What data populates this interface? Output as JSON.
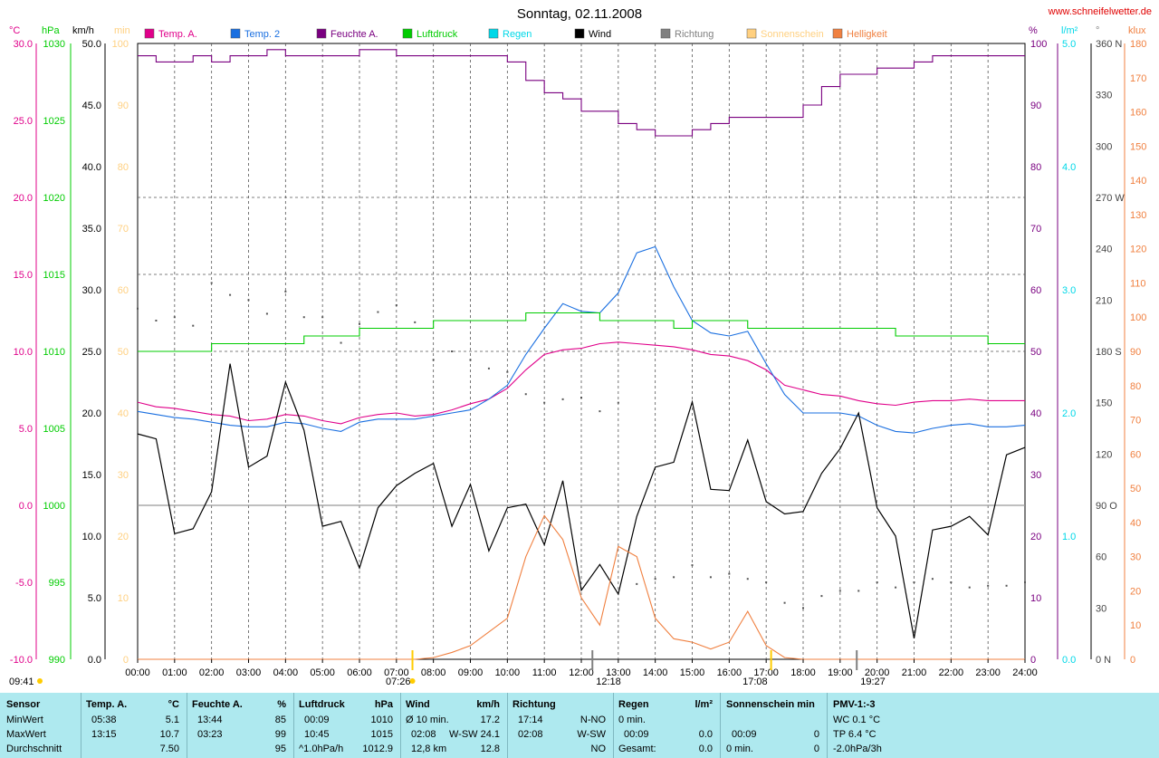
{
  "title": "Sonntag, 02.11.2008",
  "site": "www.schneifelwetter.de",
  "legend": [
    {
      "label": "Temp. A.",
      "color": "#e0008a"
    },
    {
      "label": "Temp. 2",
      "color": "#1a6fe0"
    },
    {
      "label": "Feuchte A.",
      "color": "#7a0080"
    },
    {
      "label": "Luftdruck",
      "color": "#00cc00"
    },
    {
      "label": "Regen",
      "color": "#00d8e8"
    },
    {
      "label": "Wind",
      "color": "#000000"
    },
    {
      "label": "Richtung",
      "color": "#808080"
    },
    {
      "label": "Sonnenschein",
      "color": "#ffd080"
    },
    {
      "label": "Helligkeit",
      "color": "#f08040"
    }
  ],
  "axes": {
    "temp": {
      "unit": "°C",
      "ticks": [
        "30.0",
        "25.0",
        "20.0",
        "15.0",
        "10.0",
        "5.0",
        "0.0",
        "-5.0",
        "-10.0"
      ],
      "color": "#e0008a"
    },
    "press": {
      "unit": "hPa",
      "ticks": [
        "1030",
        "1025",
        "1020",
        "1015",
        "1010",
        "1005",
        "1000",
        "995",
        "990"
      ],
      "color": "#00cc00"
    },
    "wind": {
      "unit": "km/h",
      "ticks": [
        "50.0",
        "45.0",
        "40.0",
        "35.0",
        "30.0",
        "25.0",
        "20.0",
        "15.0",
        "10.0",
        "5.0",
        "0.0"
      ],
      "color": "#000000"
    },
    "sun": {
      "unit": "min",
      "ticks": [
        "100",
        "90",
        "80",
        "70",
        "60",
        "50",
        "40",
        "30",
        "20",
        "10",
        "0"
      ],
      "color": "#ffd080"
    },
    "hum": {
      "unit": "%",
      "ticks": [
        "100",
        "90",
        "80",
        "70",
        "60",
        "50",
        "40",
        "30",
        "20",
        "10",
        "0"
      ],
      "color": "#7a0080"
    },
    "rain": {
      "unit": "l/m²",
      "ticks": [
        "5.0",
        "4.0",
        "3.0",
        "2.0",
        "1.0",
        "0.0"
      ],
      "color": "#00d8e8"
    },
    "dir": {
      "unit": "°",
      "ticks": [
        "360 N",
        "330",
        "300",
        "270 W",
        "240",
        "210",
        "180 S",
        "150",
        "120",
        "90 O",
        "60",
        "30",
        "0 N"
      ],
      "color": "#808080"
    },
    "lux": {
      "unit": "klux",
      "ticks": [
        "180",
        "170",
        "160",
        "150",
        "140",
        "130",
        "120",
        "110",
        "100",
        "90",
        "80",
        "70",
        "60",
        "50",
        "40",
        "30",
        "20",
        "10",
        "0"
      ],
      "color": "#f08040"
    }
  },
  "time_labels": [
    "00:00",
    "01:00",
    "02:00",
    "03:00",
    "04:00",
    "05:00",
    "06:00",
    "07:00",
    "08:00",
    "09:00",
    "10:00",
    "11:00",
    "12:00",
    "13:00",
    "14:00",
    "15:00",
    "16:00",
    "17:00",
    "18:00",
    "19:00",
    "20:00",
    "21:00",
    "22:00",
    "23:00",
    "24:00"
  ],
  "markers": {
    "moon_rise": "09:41",
    "sunrise": "07:26",
    "noon": "12:18",
    "sunset": "17:08",
    "moon_set": "19:27"
  },
  "chart_data": {
    "type": "line",
    "x_hours": [
      0,
      0.5,
      1,
      1.5,
      2,
      2.5,
      3,
      3.5,
      4,
      4.5,
      5,
      5.5,
      6,
      6.5,
      7,
      7.5,
      8,
      8.5,
      9,
      9.5,
      10,
      10.5,
      11,
      11.5,
      12,
      12.5,
      13,
      13.5,
      14,
      14.5,
      15,
      15.5,
      16,
      16.5,
      17,
      17.5,
      18,
      18.5,
      19,
      19.5,
      20,
      20.5,
      21,
      21.5,
      22,
      22.5,
      23,
      23.5,
      24
    ],
    "series": [
      {
        "name": "Temp. A.",
        "axis": "temp",
        "values": [
          6.7,
          6.4,
          6.3,
          6.1,
          5.9,
          5.8,
          5.5,
          5.6,
          5.9,
          5.8,
          5.5,
          5.3,
          5.7,
          5.9,
          6.0,
          5.8,
          5.9,
          6.2,
          6.6,
          6.9,
          7.6,
          8.8,
          9.8,
          10.1,
          10.2,
          10.5,
          10.6,
          10.5,
          10.4,
          10.3,
          10.1,
          9.8,
          9.7,
          9.4,
          8.8,
          7.8,
          7.5,
          7.2,
          7.1,
          6.8,
          6.6,
          6.5,
          6.7,
          6.8,
          6.8,
          6.9,
          6.8,
          6.8,
          6.8
        ]
      },
      {
        "name": "Temp. 2",
        "axis": "temp",
        "values": [
          6.1,
          5.9,
          5.7,
          5.6,
          5.4,
          5.2,
          5.1,
          5.1,
          5.4,
          5.3,
          5.0,
          4.8,
          5.4,
          5.6,
          5.6,
          5.6,
          5.8,
          6.0,
          6.2,
          6.9,
          7.8,
          9.8,
          11.5,
          13.1,
          12.6,
          12.5,
          13.8,
          16.4,
          16.8,
          14.2,
          12.0,
          11.2,
          11.0,
          11.3,
          9.2,
          7.2,
          6.0,
          6.0,
          6.0,
          5.8,
          5.2,
          4.8,
          4.7,
          5.0,
          5.2,
          5.3,
          5.1,
          5.1,
          5.2
        ]
      },
      {
        "name": "Feuchte A.",
        "axis": "hum",
        "values": [
          98,
          97,
          97,
          98,
          97,
          98,
          98,
          99,
          98,
          98,
          98,
          98,
          99,
          99,
          98,
          98,
          98,
          98,
          98,
          98,
          97,
          94,
          92,
          91,
          89,
          89,
          87,
          86,
          85,
          85,
          86,
          87,
          88,
          88,
          88,
          88,
          90,
          93,
          95,
          95,
          96,
          96,
          97,
          98,
          98,
          98,
          98,
          98,
          98
        ]
      },
      {
        "name": "Luftdruck",
        "axis": "press",
        "values": [
          1010,
          1010,
          1010,
          1010,
          1010.5,
          1010.5,
          1010.5,
          1010.5,
          1010.5,
          1011,
          1011,
          1011,
          1011.5,
          1011.5,
          1011.5,
          1011.5,
          1012,
          1012,
          1012,
          1012,
          1012,
          1012.5,
          1012.5,
          1012.5,
          1012.5,
          1012,
          1012,
          1012,
          1012,
          1011.5,
          1012,
          1012,
          1012,
          1011.5,
          1011.5,
          1011.5,
          1011.5,
          1011.5,
          1011.5,
          1011.5,
          1011.5,
          1011,
          1011,
          1011,
          1011,
          1011,
          1010.5,
          1010.5,
          1010.5
        ]
      },
      {
        "name": "Wind",
        "axis": "wind",
        "values": [
          18.3,
          17.9,
          10.2,
          10.6,
          13.6,
          24.0,
          15.6,
          16.5,
          22.5,
          18.6,
          10.8,
          11.2,
          7.4,
          12.3,
          14.1,
          15.1,
          15.9,
          10.8,
          14.2,
          8.8,
          12.3,
          12.6,
          9.3,
          14.5,
          5.6,
          7.7,
          5.3,
          11.6,
          15.6,
          16.0,
          20.9,
          13.8,
          13.7,
          17.8,
          12.8,
          11.8,
          12.0,
          15.1,
          17.1,
          20.0,
          12.3,
          10.0,
          1.7,
          10.5,
          10.8,
          11.6,
          10.1,
          16.6,
          17.2
        ]
      },
      {
        "name": "Helligkeit",
        "axis": "lux",
        "values": [
          0,
          0,
          0,
          0,
          0,
          0,
          0,
          0,
          0,
          0,
          0,
          0,
          0,
          0,
          0,
          0,
          0.5,
          2,
          4,
          8,
          12,
          30,
          42,
          35,
          18,
          10,
          33,
          30,
          12,
          6,
          5,
          3,
          5,
          14,
          4,
          0.5,
          0,
          0,
          0,
          0,
          0,
          0,
          0,
          0,
          0,
          0,
          0,
          0,
          0
        ]
      },
      {
        "name": "Richtung",
        "axis": "dir",
        "values": [
          205,
          198,
          200,
          195,
          220,
          213,
          210,
          202,
          215,
          200,
          200,
          185,
          196,
          203,
          207,
          197,
          175,
          180,
          175,
          170,
          168,
          155,
          150,
          152,
          153,
          145,
          150,
          44,
          47,
          48,
          55,
          48,
          50,
          47,
          45,
          33,
          30,
          37,
          40,
          40,
          45,
          42,
          45,
          47,
          45,
          42,
          43,
          43,
          45
        ]
      }
    ],
    "ylim_temp": [
      -10,
      30
    ],
    "ylim_press": [
      990,
      1030
    ],
    "ylim_wind": [
      0,
      50
    ],
    "ylim_hum": [
      0,
      100
    ],
    "ylim_lux": [
      0,
      180
    ],
    "ylim_dir": [
      0,
      360
    ]
  },
  "stats": {
    "sensor": {
      "header": "Sensor",
      "rows": [
        "MinWert",
        "MaxWert",
        "Durchschnitt"
      ]
    },
    "tempa": {
      "header": "Temp. A.",
      "unit": "°C",
      "times": [
        "05:38",
        "13:15",
        ""
      ],
      "values": [
        "5.1",
        "10.7",
        "7.50"
      ]
    },
    "hum": {
      "header": "Feuchte A.",
      "unit": "%",
      "times": [
        "13:44",
        "03:23",
        ""
      ],
      "values": [
        "85",
        "99",
        "95"
      ]
    },
    "press": {
      "header": "Luftdruck",
      "unit": "hPa",
      "times": [
        "00:09",
        "10:45",
        "^1.0hPa/h"
      ],
      "values": [
        "1010",
        "1015",
        "1012.9"
      ]
    },
    "wind": {
      "header": "Wind",
      "unit": "km/h",
      "times": [
        "Ø 10 min.",
        "02:08",
        "12,8 km"
      ],
      "extra": [
        "",
        "W-SW",
        ""
      ],
      "values": [
        "17.2",
        "24.1",
        "12.8"
      ]
    },
    "dir": {
      "header": "Richtung",
      "times": [
        "17:14",
        "02:08",
        ""
      ],
      "values": [
        "N-NO",
        "W-SW",
        "NO"
      ]
    },
    "rain": {
      "header": "Regen",
      "unit": "l/m²",
      "times": [
        "0 min.",
        "00:09",
        "Gesamt:"
      ],
      "values": [
        "",
        "0.0",
        "0.0"
      ]
    },
    "sun": {
      "header": "Sonnenschein min",
      "times": [
        "",
        "00:09",
        "0 min."
      ],
      "values": [
        "",
        "0",
        "0"
      ]
    },
    "pmv": {
      "header": "PMV-1:-3",
      "rows": [
        "WC 0.1 °C",
        "TP 6.4 °C",
        "-2.0hPa/3h"
      ]
    }
  }
}
